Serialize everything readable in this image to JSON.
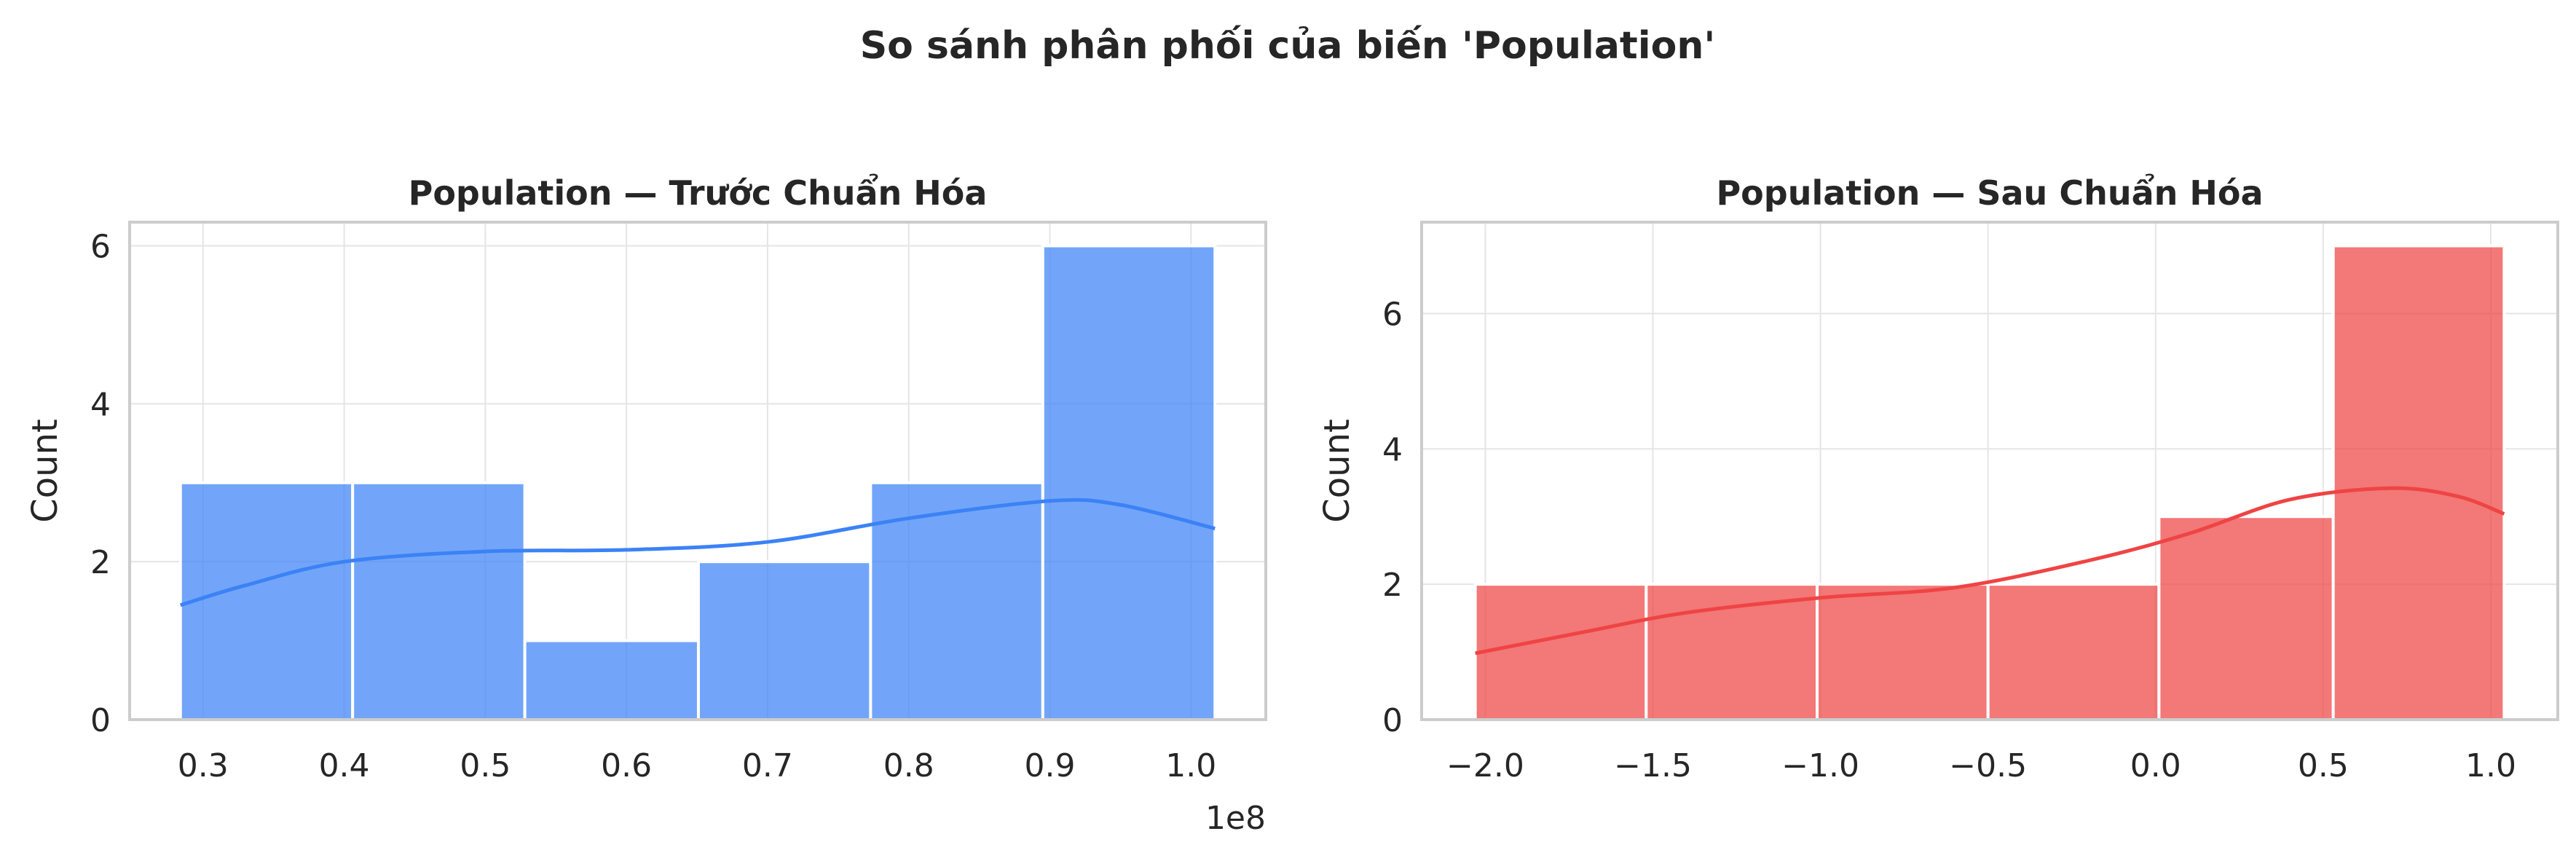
{
  "figure": {
    "suptitle": "So sánh phân phối của biến 'Population'"
  },
  "chart_data": [
    {
      "type": "bar",
      "subtype": "histogram-with-kde",
      "title": "Population — Trước Chuẩn Hóa",
      "xlabel": "",
      "ylabel": "Count",
      "x_offset_label": "1e8",
      "color": "#3b82f6",
      "grid": true,
      "bin_edges": [
        0.284,
        0.406,
        0.528,
        0.651,
        0.773,
        0.895,
        1.017
      ],
      "counts": [
        3,
        3,
        1,
        2,
        3,
        6
      ],
      "kde": {
        "x": [
          0.284,
          0.33,
          0.4,
          0.5,
          0.6,
          0.7,
          0.8,
          0.9,
          0.95,
          1.017
        ],
        "y": [
          1.45,
          1.7,
          2.0,
          2.13,
          2.15,
          2.25,
          2.55,
          2.77,
          2.72,
          2.42
        ]
      },
      "xlim": [
        0.248,
        1.053
      ],
      "ylim": [
        0,
        6.3
      ],
      "xticks": [
        0.3,
        0.4,
        0.5,
        0.6,
        0.7,
        0.8,
        0.9,
        1.0
      ],
      "xtick_labels": [
        "0.3",
        "0.4",
        "0.5",
        "0.6",
        "0.7",
        "0.8",
        "0.9",
        "1.0"
      ],
      "yticks": [
        0,
        2,
        4,
        6
      ],
      "ytick_labels": [
        "0",
        "2",
        "4",
        "6"
      ]
    },
    {
      "type": "bar",
      "subtype": "histogram-with-kde",
      "title": "Population — Sau Chuẩn Hóa",
      "xlabel": "",
      "ylabel": "Count",
      "color": "#ef4444",
      "grid": true,
      "bin_edges": [
        -2.03,
        -1.52,
        -1.01,
        -0.5,
        0.01,
        0.53,
        1.04
      ],
      "counts": [
        2,
        2,
        2,
        2,
        3,
        7
      ],
      "kde": {
        "x": [
          -2.03,
          -1.7,
          -1.4,
          -1.0,
          -0.6,
          -0.2,
          0.1,
          0.4,
          0.7,
          0.9,
          1.04
        ],
        "y": [
          0.98,
          1.3,
          1.58,
          1.8,
          1.95,
          2.35,
          2.75,
          3.25,
          3.42,
          3.3,
          3.04
        ]
      },
      "xlim": [
        -2.19,
        1.2
      ],
      "ylim": [
        0,
        7.35
      ],
      "xticks": [
        -2.0,
        -1.5,
        -1.0,
        -0.5,
        0.0,
        0.5,
        1.0
      ],
      "xtick_labels": [
        "−2.0",
        "−1.5",
        "−1.0",
        "−0.5",
        "0.0",
        "0.5",
        "1.0"
      ],
      "yticks": [
        0,
        2,
        4,
        6
      ],
      "ytick_labels": [
        "0",
        "2",
        "4",
        "6"
      ]
    }
  ]
}
